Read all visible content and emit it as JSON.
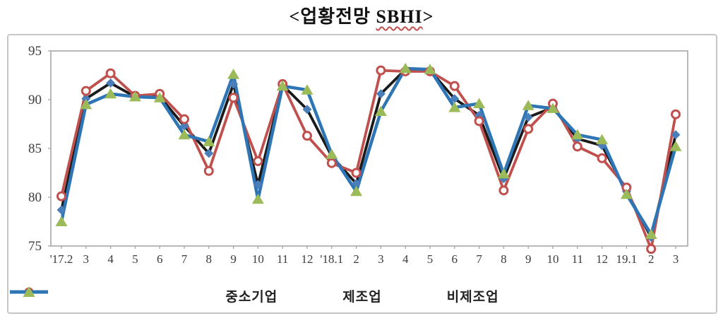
{
  "title": {
    "prefix": "<업황전망 ",
    "emphasized": "SBHI",
    "suffix": ">"
  },
  "chart_data": {
    "type": "line",
    "title": "<업황전망 SBHI>",
    "categories": [
      "'17.2",
      "3",
      "4",
      "5",
      "6",
      "7",
      "8",
      "9",
      "10",
      "11",
      "12",
      "'18.1",
      "2",
      "3",
      "4",
      "5",
      "6",
      "7",
      "8",
      "9",
      "10",
      "11",
      "12",
      "19.1",
      "2",
      "3"
    ],
    "series": [
      {
        "id": "sme",
        "name": "중소기업",
        "line_color": "#1a1a1a",
        "marker": "diamond",
        "marker_color": "#4a7ebb",
        "values": [
          78.7,
          90.1,
          91.7,
          90.3,
          90.3,
          87.3,
          84.5,
          91.6,
          81.3,
          91.5,
          89.0,
          84.2,
          81.4,
          90.6,
          93.1,
          93.0,
          90.1,
          88.4,
          81.9,
          88.2,
          89.2,
          86.0,
          85.3,
          80.6,
          75.9,
          86.4
        ]
      },
      {
        "id": "manufacturing",
        "name": "제조업",
        "line_color": "#c0504d",
        "marker": "open-circle",
        "marker_color": "#c0504d",
        "values": [
          80.1,
          90.9,
          92.7,
          90.4,
          90.6,
          88.0,
          82.7,
          90.2,
          83.7,
          91.6,
          86.3,
          83.5,
          82.5,
          93.0,
          92.9,
          92.9,
          91.4,
          87.8,
          80.7,
          87.0,
          89.6,
          85.2,
          84.0,
          81.0,
          74.7,
          88.5
        ]
      },
      {
        "id": "non_manufacturing",
        "name": "비제조업",
        "line_color": "#2e75b6",
        "marker": "triangle",
        "marker_color": "#9bbb59",
        "values": [
          77.5,
          89.5,
          90.6,
          90.3,
          90.2,
          86.4,
          85.7,
          92.6,
          79.8,
          91.4,
          91.0,
          84.4,
          80.6,
          88.8,
          93.2,
          93.1,
          89.2,
          89.6,
          82.4,
          89.4,
          89.1,
          86.4,
          85.9,
          80.3,
          76.2,
          85.2
        ]
      }
    ],
    "ylim": [
      75,
      95
    ],
    "yticks": [
      75,
      80,
      85,
      90,
      95
    ],
    "grid": false,
    "legend_position": "bottom",
    "frame_color": "#a6a6a6",
    "axis_label_color": "#3c3c3c"
  }
}
